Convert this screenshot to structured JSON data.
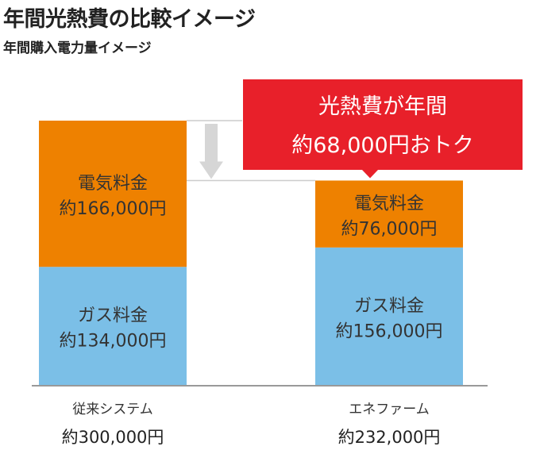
{
  "title": "年間光熱費の比較イメージ",
  "subtitle": "年間購入電力量イメージ",
  "colors": {
    "electricity": "#EE8100",
    "gas": "#7BBFE7",
    "callout": "#E8202A",
    "arrow": "#D6D6D6",
    "guide": "#CCCCCC"
  },
  "callout": {
    "line1": "光熱費が年間",
    "line2": "約68,000円おトク"
  },
  "chart_data": {
    "type": "bar",
    "stacked": true,
    "categories": [
      "従来システム",
      "エネファーム"
    ],
    "totals": [
      "約300,000円",
      "約232,000円"
    ],
    "total_values": [
      300000,
      232000
    ],
    "series": [
      {
        "key": "gas",
        "name": "ガス料金",
        "values": [
          134000,
          156000
        ],
        "labels": [
          "約134,000円",
          "約156,000円"
        ]
      },
      {
        "key": "electricity",
        "name": "電気料金",
        "values": [
          166000,
          76000
        ],
        "labels": [
          "約166,000円",
          "約76,000円"
        ]
      }
    ]
  }
}
